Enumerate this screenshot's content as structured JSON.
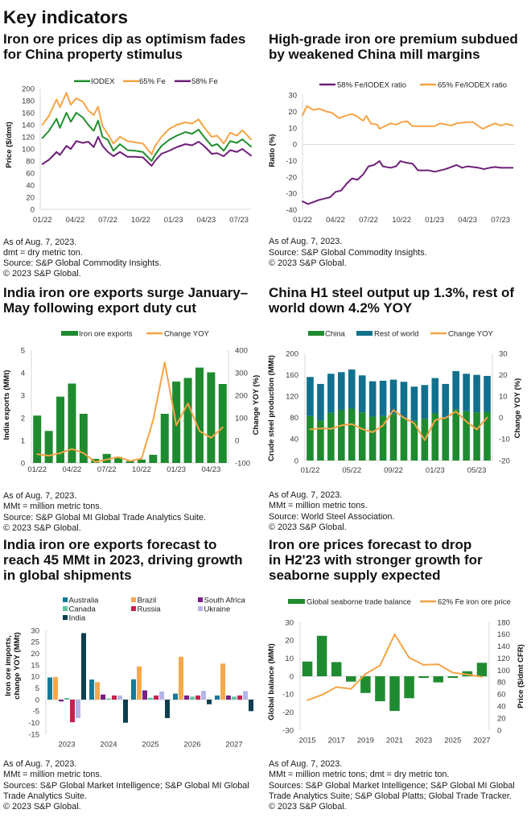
{
  "page_title": "Key indicators",
  "panels": [
    {
      "heading_lines": [
        "Iron ore prices dip as optimism fades",
        "for China property stimulus"
      ],
      "notes": [
        "As of Aug. 7, 2023.",
        "dmt = dry metric ton.",
        "Source: S&P Global Commodity Insights.",
        "© 2023 S&P Global."
      ]
    },
    {
      "heading_lines": [
        "High-grade iron ore premium subdued",
        "by weakened China mill margins"
      ],
      "notes": [
        "As of Aug. 7, 2023.",
        "Source: S&P Global Commodity Insights.",
        "© 2023 S&P Global."
      ]
    },
    {
      "heading_lines": [
        "India iron ore exports surge January–",
        "May following export duty cut"
      ],
      "notes": [
        "As of Aug. 7, 2023.",
        "MMt = million metric tons.",
        "Source: S&P Global MI Global Trade Analytics Suite.",
        "© 2023 S&P Global."
      ]
    },
    {
      "heading_lines": [
        "China H1 steel output up 1.3%, rest of",
        "world down 4.2% YOY"
      ],
      "notes": [
        "As of Aug. 7, 2023.",
        "MMt = million metric tons.",
        "Source: World Steel Association.",
        "© 2023 S&P Global."
      ]
    },
    {
      "heading_lines": [
        "India iron ore exports forecast to",
        "reach 45 MMt in 2023, driving growth",
        "in global shipments"
      ],
      "notes": [
        "As of Aug. 7, 2023.",
        "MMt = million metric tons.",
        "Sources: S&P Global Market Intelligence; S&P Global MI Global",
        "Trade Analytics Suite.",
        "© 2023 S&P Global."
      ]
    },
    {
      "heading_lines": [
        "Iron ore prices forecast to drop",
        "in H2'23 with stronger growth for",
        "seaborne supply expected"
      ],
      "notes": [
        "As of Aug. 7, 2023.",
        "MMt = million metric tons; dmt = dry metric ton.",
        "Sources: S&P Global Market Intelligence; S&P Global MI Global",
        "Trade Analytics Suite; S&P Global Platts; Global Trade Tracker.",
        "© 2023 S&P Global."
      ]
    }
  ],
  "chart_data": [
    {
      "type": "line",
      "title": "Iron ore prices dip as optimism fades for China property stimulus",
      "xlabel": "",
      "ylabel": "Price ($/dmt)",
      "ylim": [
        0,
        200
      ],
      "yticks": [
        0,
        20,
        40,
        60,
        80,
        100,
        120,
        140,
        160,
        180,
        200
      ],
      "x_units": "months since Jan. 2022",
      "xlim": [
        -0.2,
        19.1
      ],
      "xtick_values": [
        0,
        3,
        6,
        9,
        12,
        15,
        18
      ],
      "xtick_labels": [
        "01/22",
        "04/22",
        "07/22",
        "10/22",
        "01/23",
        "04/23",
        "07/23"
      ],
      "grid": false,
      "legend": "top",
      "series": [
        {
          "name": "IODEX",
          "color": "#1f8f2d",
          "x": [
            0,
            0.6,
            1.3,
            1.6,
            2.2,
            2.6,
            3.1,
            3.7,
            4.2,
            4.7,
            5.1,
            5.5,
            6.0,
            6.5,
            7.1,
            7.8,
            8.5,
            9.2,
            10.0,
            10.3,
            10.9,
            11.6,
            12.3,
            13.1,
            13.7,
            14.3,
            14.8,
            15.5,
            16.0,
            16.6,
            17.2,
            17.8,
            18.3,
            19.1
          ],
          "y": [
            118,
            130,
            150,
            135,
            160,
            145,
            160,
            152,
            140,
            130,
            147,
            120,
            115,
            97,
            108,
            98,
            97,
            95,
            80,
            90,
            105,
            115,
            122,
            128,
            125,
            132,
            120,
            105,
            108,
            97,
            113,
            110,
            116,
            104
          ]
        },
        {
          "name": "65% Fe",
          "color": "#f5a445",
          "x": [
            0,
            0.6,
            1.3,
            1.6,
            2.2,
            2.6,
            3.1,
            3.7,
            4.2,
            4.7,
            5.1,
            5.5,
            6.0,
            6.5,
            7.1,
            7.8,
            8.5,
            9.2,
            10.0,
            10.3,
            10.9,
            11.6,
            12.3,
            13.1,
            13.7,
            14.3,
            14.8,
            15.5,
            16.0,
            16.6,
            17.2,
            17.8,
            18.3,
            19.1
          ],
          "y": [
            140,
            155,
            182,
            169,
            193,
            173,
            184,
            178,
            164,
            156,
            170,
            138,
            124,
            109,
            120,
            113,
            111,
            109,
            91,
            104,
            120,
            133,
            140,
            144,
            142,
            149,
            136,
            120,
            122,
            109,
            127,
            122,
            131,
            116
          ]
        },
        {
          "name": "58% Fe",
          "color": "#6e1f78",
          "x": [
            0,
            0.6,
            1.3,
            1.6,
            2.2,
            2.6,
            3.1,
            3.7,
            4.2,
            4.7,
            5.1,
            5.5,
            6.0,
            6.5,
            7.1,
            7.8,
            8.5,
            9.2,
            10.0,
            10.3,
            10.9,
            11.6,
            12.3,
            13.1,
            13.7,
            14.3,
            14.8,
            15.5,
            16.0,
            16.6,
            17.2,
            17.8,
            18.3,
            19.1
          ],
          "y": [
            75,
            82,
            95,
            90,
            105,
            100,
            113,
            110,
            112,
            103,
            120,
            105,
            95,
            88,
            95,
            87,
            87,
            86,
            72,
            80,
            92,
            97,
            103,
            108,
            106,
            112,
            105,
            92,
            93,
            88,
            98,
            95,
            100,
            89
          ]
        }
      ]
    },
    {
      "type": "line",
      "title": "High-grade iron ore premium subdued by weakened China mill margins",
      "xlabel": "",
      "ylabel": "Ratio (%)",
      "ylim": [
        -40,
        30
      ],
      "yticks": [
        -40,
        -30,
        -20,
        -10,
        0,
        10,
        20,
        30
      ],
      "x_units": "months since Jan. 2022",
      "xlim": [
        0,
        19.3
      ],
      "xtick_values": [
        0,
        3,
        6,
        9,
        12,
        15,
        18
      ],
      "xtick_labels": [
        "01/22",
        "04/22",
        "07/22",
        "10/22",
        "01/23",
        "04/23",
        "07/23"
      ],
      "grid": false,
      "legend": "top",
      "series": [
        {
          "name": "58% Fe/IODEX ratio",
          "color": "#6e1f78",
          "x": [
            0,
            0.5,
            1.5,
            2.5,
            3.0,
            3.5,
            4.0,
            4.5,
            5.0,
            5.5,
            6.0,
            6.5,
            7.0,
            7.3,
            8.0,
            8.5,
            8.9,
            9.3,
            10.0,
            10.5,
            11.5,
            12.0,
            13.0,
            14.0,
            14.5,
            15.0,
            16.0,
            16.5,
            17.0,
            17.5,
            18.0,
            19.1
          ],
          "y": [
            -34.8,
            -36.4,
            -33.9,
            -32.3,
            -29,
            -28.2,
            -24.1,
            -20.8,
            -21.6,
            -18.4,
            -13.4,
            -12.6,
            -10.2,
            -13.4,
            -14.3,
            -13.4,
            -10.2,
            -11,
            -11.8,
            -15.9,
            -15.9,
            -16.7,
            -15.1,
            -12.6,
            -14.3,
            -13.4,
            -14.3,
            -15.1,
            -14.3,
            -13.8,
            -14.3,
            -14.3
          ]
        },
        {
          "name": "65% Fe/IODEX ratio",
          "color": "#f5a445",
          "x": [
            0,
            0.4,
            1.0,
            1.5,
            2.2,
            2.7,
            3.3,
            4.0,
            4.5,
            5.0,
            5.5,
            5.8,
            6.2,
            6.8,
            7.0,
            7.5,
            8.0,
            8.5,
            9.0,
            9.5,
            10.0,
            11.0,
            12.0,
            12.5,
            13.5,
            14.0,
            15.0,
            15.5,
            16.0,
            16.4,
            17.0,
            17.5,
            18.0,
            18.5,
            19.1
          ],
          "y": [
            17.7,
            23.4,
            21,
            21.8,
            20,
            19.3,
            16,
            17.7,
            18.5,
            16.9,
            14.4,
            17.4,
            12.8,
            12,
            9.5,
            11.1,
            12.8,
            12,
            13.6,
            14.1,
            11.1,
            11.1,
            11.1,
            12.8,
            11.5,
            12.8,
            13.6,
            13.6,
            11.1,
            9.5,
            11.5,
            12.8,
            11.5,
            12.5,
            11.6
          ]
        }
      ]
    },
    {
      "type": "bar",
      "title": "India iron ore exports surge January–May following export duty cut",
      "categories": [
        "01/22",
        "02/22",
        "03/22",
        "04/22",
        "05/22",
        "06/22",
        "07/22",
        "08/22",
        "09/22",
        "10/22",
        "11/22",
        "12/22",
        "01/23",
        "02/23",
        "03/23",
        "04/23",
        "05/23"
      ],
      "xtick_labels": [
        "01/22",
        "04/22",
        "07/22",
        "10/22",
        "01/23",
        "04/23"
      ],
      "xlabel": "",
      "ylabel": "India exports (MMt)",
      "ylim": [
        0,
        5
      ],
      "yticks": [
        0,
        1,
        2,
        3,
        4,
        5
      ],
      "y2label": "Change YOY (%)",
      "y2lim": [
        -100,
        400
      ],
      "y2ticks": [
        -100,
        0,
        100,
        200,
        300,
        400
      ],
      "grid": false,
      "legend": "top",
      "series": [
        {
          "name": "Iron ore exports",
          "type": "bar",
          "axis": "left",
          "color": "#1f8b30",
          "values": [
            2.1,
            1.42,
            2.94,
            3.52,
            2.18,
            0.18,
            0.4,
            0.26,
            0.08,
            0.15,
            0.36,
            2.18,
            3.61,
            3.77,
            4.23,
            4.02,
            3.5
          ]
        },
        {
          "name": "Change YOY",
          "type": "line",
          "axis": "right",
          "color": "#f5a445",
          "values": [
            -61,
            -68,
            -56,
            -38,
            -56,
            -96,
            -85,
            -74,
            -91,
            -81,
            90,
            346,
            67,
            164,
            41,
            11,
            58
          ]
        }
      ]
    },
    {
      "type": "bar",
      "stacked": true,
      "title": "China H1 steel output up 1.3%, rest of world down 4.2% YOY",
      "categories": [
        "01/22",
        "02/22",
        "03/22",
        "04/22",
        "05/22",
        "06/22",
        "07/22",
        "08/22",
        "09/22",
        "10/22",
        "11/22",
        "12/22",
        "01/23",
        "02/23",
        "03/23",
        "04/23",
        "05/23",
        "06/23"
      ],
      "xtick_labels": [
        "01/22",
        "05/22",
        "09/22",
        "01/23",
        "05/23"
      ],
      "xlabel": "",
      "ylabel": "Crude steel production (MMt)",
      "ylim": [
        0,
        200
      ],
      "yticks": [
        0,
        40,
        80,
        120,
        160,
        200
      ],
      "y2label": "Change YOY (%)",
      "y2lim": [
        -20,
        30
      ],
      "y2ticks": [
        -20,
        -10,
        0,
        10,
        20,
        30
      ],
      "grid": false,
      "legend": "top",
      "series": [
        {
          "name": "China",
          "type": "bar",
          "axis": "left",
          "color": "#1f8b30",
          "values": [
            83,
            75,
            89,
            94,
            97,
            90,
            82,
            83,
            87,
            80,
            74,
            78,
            88,
            80,
            95,
            92,
            90,
            91
          ]
        },
        {
          "name": "Rest of world",
          "type": "bar",
          "axis": "left",
          "color": "#11708e",
          "values": [
            73,
            68,
            73,
            71,
            73,
            69,
            66,
            66,
            64,
            67,
            64,
            63,
            66,
            63,
            72,
            70,
            70,
            67
          ]
        },
        {
          "name": "Change YOY",
          "type": "line",
          "axis": "right",
          "color": "#f5a445",
          "values": [
            -5.5,
            -5,
            -5.2,
            -3.6,
            -3,
            -5.3,
            -6.8,
            -3.6,
            3.5,
            0,
            -2.6,
            -10.5,
            -1.1,
            -0.1,
            2.9,
            -1.8,
            -5.5,
            0.1
          ]
        }
      ]
    },
    {
      "type": "bar",
      "grouped": true,
      "title": "India iron ore exports forecast to reach 45 MMt in 2023, driving growth in global shipments",
      "categories": [
        "2023",
        "2024",
        "2025",
        "2026",
        "2027"
      ],
      "xlabel": "",
      "ylabel": "Iron ore imports, change YOY (MMt)",
      "ylabel_lines": [
        "Iron ore imports,",
        "change YOY (MMt)"
      ],
      "ylim": [
        -15,
        30
      ],
      "yticks": [
        -15,
        -10,
        -5,
        0,
        5,
        10,
        15,
        20,
        25,
        30
      ],
      "grid": false,
      "legend": "top",
      "series": [
        {
          "name": "Australia",
          "color": "#157a99",
          "values": [
            9.6,
            8.7,
            8.8,
            2.6,
            1.8
          ]
        },
        {
          "name": "Brazil",
          "color": "#f5a94e",
          "values": [
            9.8,
            7.6,
            14.4,
            18.6,
            15.6
          ]
        },
        {
          "name": "South Africa",
          "color": "#7b1f85",
          "values": [
            -0.8,
            2.2,
            4.0,
            1.8,
            1.8
          ]
        },
        {
          "name": "Canada",
          "color": "#5ec4a2",
          "values": [
            0.7,
            0.5,
            0.8,
            1.3,
            1.3
          ]
        },
        {
          "name": "Russia",
          "color": "#c9214f",
          "values": [
            -9.8,
            1.8,
            1.8,
            1.8,
            1.8
          ]
        },
        {
          "name": "Ukraine",
          "color": "#b3b6e6",
          "values": [
            -8.0,
            1.8,
            3.5,
            3.8,
            3.7
          ]
        },
        {
          "name": "India",
          "color": "#0c3e4f",
          "values": [
            28.8,
            -10.0,
            -8.0,
            -2.0,
            -5.0
          ]
        }
      ]
    },
    {
      "type": "bar",
      "title": "Iron ore prices forecast to drop in H2'23 with stronger growth for seaborne supply expected",
      "categories": [
        "2015",
        "2016",
        "2017",
        "2018",
        "2019",
        "2020",
        "2021",
        "2022",
        "2023",
        "2024",
        "2025",
        "2026",
        "2027"
      ],
      "xtick_labels": [
        "2015",
        "2017",
        "2019",
        "2021",
        "2023",
        "2025",
        "2027"
      ],
      "xlabel": "",
      "ylabel": "Global balance (MMt)",
      "ylim": [
        -30,
        30
      ],
      "yticks": [
        -30,
        -20,
        -10,
        0,
        10,
        20,
        30
      ],
      "y2label": "Price ($/dmt CFR)",
      "y2lim": [
        0,
        180
      ],
      "y2ticks": [
        0,
        20,
        40,
        60,
        80,
        100,
        120,
        140,
        160,
        180
      ],
      "grid": false,
      "legend": "top",
      "series": [
        {
          "name": "Global seaborne trade balance",
          "type": "bar",
          "axis": "left",
          "color": "#1f8b30",
          "values": [
            8.2,
            22.5,
            7.9,
            -3.0,
            -9.3,
            -13.9,
            -19.3,
            -12.2,
            -0.9,
            -3.4,
            -0.9,
            2.8,
            7.5
          ]
        },
        {
          "name": "62% Fe iron ore price",
          "type": "line",
          "axis": "right",
          "color": "#f5a445",
          "values": [
            50,
            59,
            72,
            69,
            94,
            108,
            160,
            121,
            109,
            110,
            96,
            93,
            89
          ]
        }
      ]
    }
  ]
}
